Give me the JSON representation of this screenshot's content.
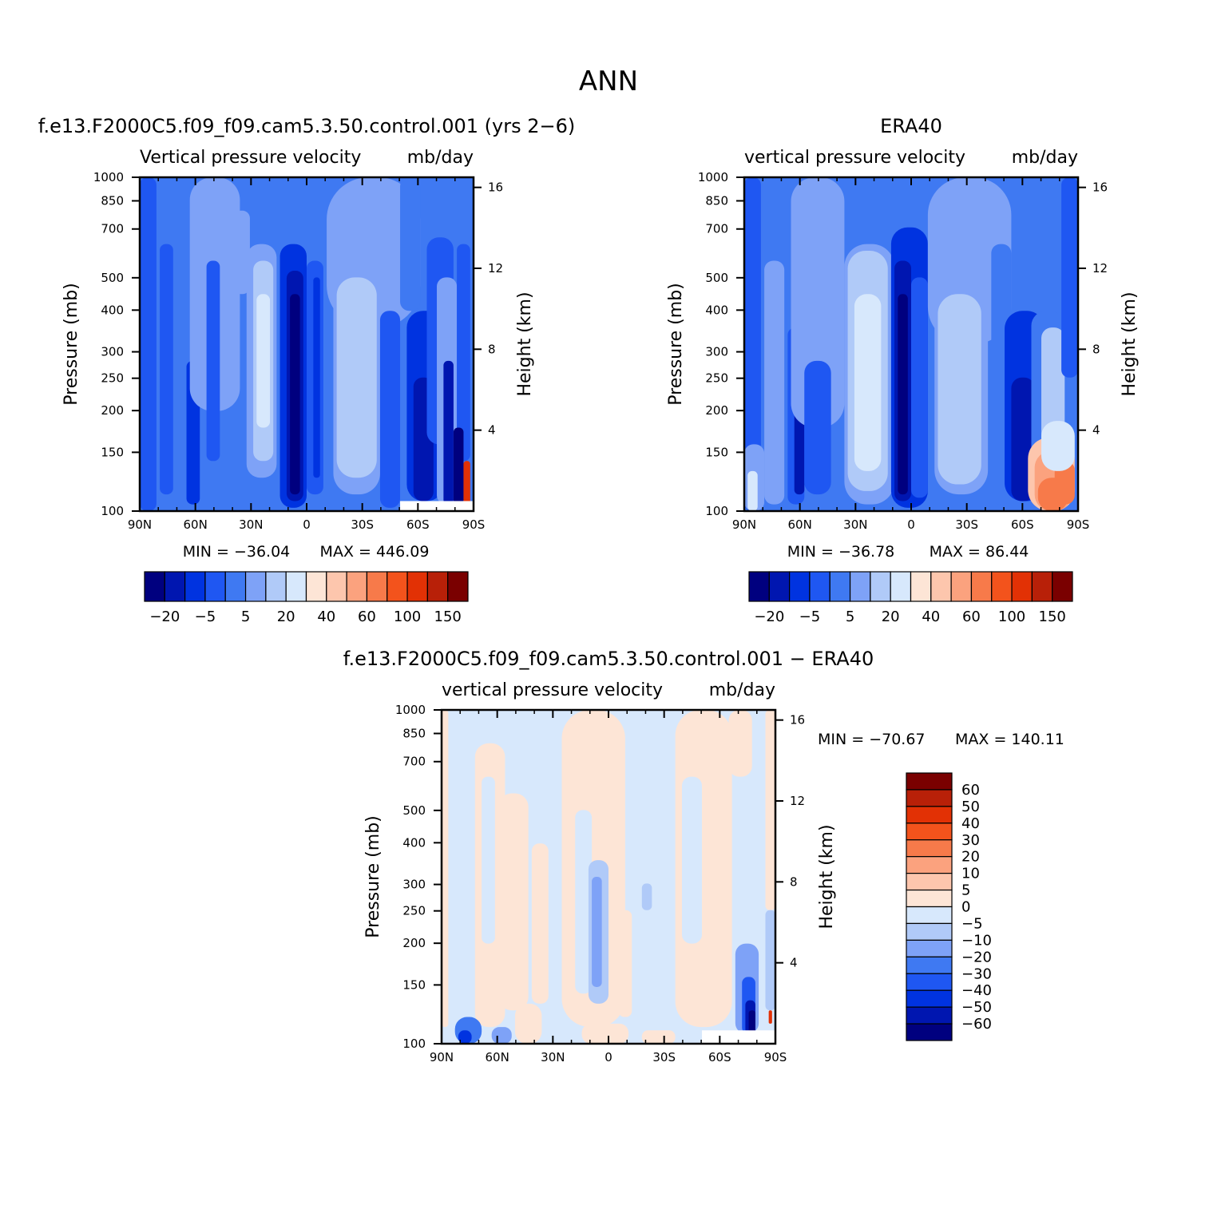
{
  "figure": {
    "title": "ANN",
    "diff_title": "f.e13.F2000C5.f09_f09.cam5.3.50.control.001 − ERA40"
  },
  "chart_data": [
    {
      "type": "heatmap",
      "run_title": "f.e13.F2000C5.f09_f09.cam5.3.50.control.001 (yrs 2−6)",
      "title": "Vertical pressure velocity",
      "units": "mb/day",
      "xlabel": "",
      "ylabel": "Pressure (mb)",
      "ylabel_right": "Height (km)",
      "x_ticks": [
        "90N",
        "60N",
        "30N",
        "0",
        "30S",
        "60S",
        "90S"
      ],
      "y_ticks": [
        100,
        150,
        200,
        250,
        300,
        400,
        500,
        700,
        850,
        1000
      ],
      "y_scale": "log",
      "y_ticks_right": [
        16,
        12,
        8,
        4
      ],
      "ylim": [
        1000,
        100
      ],
      "min_label": "MIN = −36.04",
      "max_label": "MAX = 446.09",
      "colorbar_labels": [
        "−20",
        "−5",
        "5",
        "20",
        "40",
        "60",
        "100",
        "150"
      ],
      "colorbar_colors": [
        "#00007f",
        "#0016b0",
        "#0033e0",
        "#1f57f2",
        "#3f79f2",
        "#7ea2f7",
        "#b0caf8",
        "#d7e8fc",
        "#fde5d6",
        "#fdc6ad",
        "#fba27e",
        "#f77a4a",
        "#f3531c",
        "#e23105",
        "#b82008",
        "#7a0000"
      ],
      "field": "model"
    },
    {
      "type": "heatmap",
      "run_title": "ERA40",
      "title": "vertical pressure velocity",
      "units": "mb/day",
      "xlabel": "",
      "ylabel": "Pressure (mb)",
      "ylabel_right": "Height (km)",
      "x_ticks": [
        "90N",
        "60N",
        "30N",
        "0",
        "30S",
        "60S",
        "90S"
      ],
      "y_ticks": [
        100,
        150,
        200,
        250,
        300,
        400,
        500,
        700,
        850,
        1000
      ],
      "y_scale": "log",
      "y_ticks_right": [
        16,
        12,
        8,
        4
      ],
      "ylim": [
        1000,
        100
      ],
      "min_label": "MIN = −36.78",
      "max_label": "MAX =  86.44",
      "colorbar_labels": [
        "−20",
        "−5",
        "5",
        "20",
        "40",
        "60",
        "100",
        "150"
      ],
      "colorbar_colors": [
        "#00007f",
        "#0016b0",
        "#0033e0",
        "#1f57f2",
        "#3f79f2",
        "#7ea2f7",
        "#b0caf8",
        "#d7e8fc",
        "#fde5d6",
        "#fdc6ad",
        "#fba27e",
        "#f77a4a",
        "#f3531c",
        "#e23105",
        "#b82008",
        "#7a0000"
      ],
      "field": "obs"
    },
    {
      "type": "heatmap",
      "run_title": "",
      "title": "vertical pressure velocity",
      "units": "mb/day",
      "xlabel": "",
      "ylabel": "Pressure (mb)",
      "ylabel_right": "Height (km)",
      "x_ticks": [
        "90N",
        "60N",
        "30N",
        "0",
        "30S",
        "60S",
        "90S"
      ],
      "y_ticks": [
        100,
        150,
        200,
        250,
        300,
        400,
        500,
        700,
        850,
        1000
      ],
      "y_scale": "log",
      "y_ticks_right": [
        16,
        12,
        8,
        4
      ],
      "ylim": [
        1000,
        100
      ],
      "min_label": "MIN = −70.67",
      "max_label": "MAX = 140.11",
      "colorbar_labels": [
        "60",
        "50",
        "40",
        "30",
        "20",
        "10",
        "5",
        "0",
        "−5",
        "−10",
        "−20",
        "−30",
        "−40",
        "−50",
        "−60"
      ],
      "colorbar_colors": [
        "#7a0000",
        "#b82008",
        "#e23105",
        "#f3531c",
        "#f77a4a",
        "#fba27e",
        "#fdc6ad",
        "#fde5d6",
        "#d7e8fc",
        "#b0caf8",
        "#7ea2f7",
        "#3f79f2",
        "#1f57f2",
        "#0033e0",
        "#0016b0",
        "#00007f"
      ],
      "field": "diff"
    }
  ]
}
